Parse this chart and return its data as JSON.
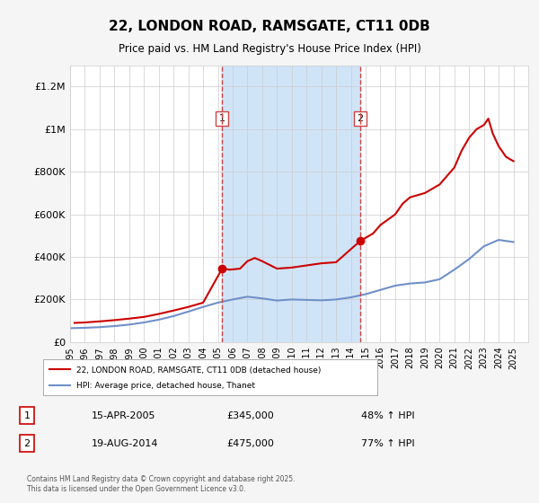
{
  "title": "22, LONDON ROAD, RAMSGATE, CT11 0DB",
  "subtitle": "Price paid vs. HM Land Registry's House Price Index (HPI)",
  "ylabel_ticks": [
    "£0",
    "£200K",
    "£400K",
    "£600K",
    "£800K",
    "£1M",
    "£1.2M"
  ],
  "ytick_values": [
    0,
    200000,
    400000,
    600000,
    800000,
    1000000,
    1200000
  ],
  "ylim": [
    0,
    1300000
  ],
  "xlim": [
    1995,
    2026
  ],
  "marker1_x": 2005.29,
  "marker2_x": 2014.63,
  "marker1_label": "1",
  "marker2_label": "2",
  "marker1_price": 345000,
  "marker2_price": 475000,
  "shade_color": "#d0e4f7",
  "line_red_color": "#cc0000",
  "line_blue_color": "#7090c8",
  "legend_line1": "22, LONDON ROAD, RAMSGATE, CT11 0DB (detached house)",
  "legend_line2": "HPI: Average price, detached house, Thanet",
  "table_row1": [
    "1",
    "15-APR-2005",
    "£345,000",
    "48% ↑ HPI"
  ],
  "table_row2": [
    "2",
    "19-AUG-2014",
    "£475,000",
    "77% ↑ HPI"
  ],
  "footer": "Contains HM Land Registry data © Crown copyright and database right 2025.\nThis data is licensed under the Open Government Licence v3.0.",
  "background_color": "#f5f5f5",
  "plot_background_color": "#ffffff",
  "years": [
    1995,
    1996,
    1997,
    1998,
    1999,
    2000,
    2001,
    2002,
    2003,
    2004,
    2005,
    2006,
    2007,
    2008,
    2009,
    2010,
    2011,
    2012,
    2013,
    2014,
    2015,
    2016,
    2017,
    2018,
    2019,
    2020,
    2021,
    2022,
    2023,
    2024,
    2025
  ],
  "hpi_values": [
    65000,
    67000,
    70000,
    75000,
    82000,
    92000,
    105000,
    122000,
    143000,
    165000,
    185000,
    200000,
    213000,
    205000,
    195000,
    200000,
    198000,
    196000,
    200000,
    210000,
    225000,
    245000,
    265000,
    275000,
    280000,
    295000,
    340000,
    390000,
    450000,
    480000,
    470000
  ],
  "price_values_x": [
    1995.3,
    1996.0,
    1997.0,
    1998.0,
    1999.0,
    2000.0,
    2001.0,
    2002.0,
    2003.0,
    2004.0,
    2005.29,
    2005.8,
    2006.5,
    2007.0,
    2007.5,
    2008.0,
    2009.0,
    2010.0,
    2011.0,
    2012.0,
    2013.0,
    2014.63,
    2015.0,
    2015.5,
    2016.0,
    2017.0,
    2017.5,
    2018.0,
    2019.0,
    2020.0,
    2021.0,
    2021.5,
    2022.0,
    2022.5,
    2023.0,
    2023.3,
    2023.6,
    2024.0,
    2024.5,
    2025.0
  ],
  "price_values_y": [
    90000,
    92000,
    97000,
    103000,
    110000,
    118000,
    132000,
    148000,
    165000,
    185000,
    345000,
    340000,
    345000,
    380000,
    395000,
    380000,
    345000,
    350000,
    360000,
    370000,
    375000,
    475000,
    490000,
    510000,
    550000,
    600000,
    650000,
    680000,
    700000,
    740000,
    820000,
    900000,
    960000,
    1000000,
    1020000,
    1050000,
    980000,
    920000,
    870000,
    850000
  ]
}
